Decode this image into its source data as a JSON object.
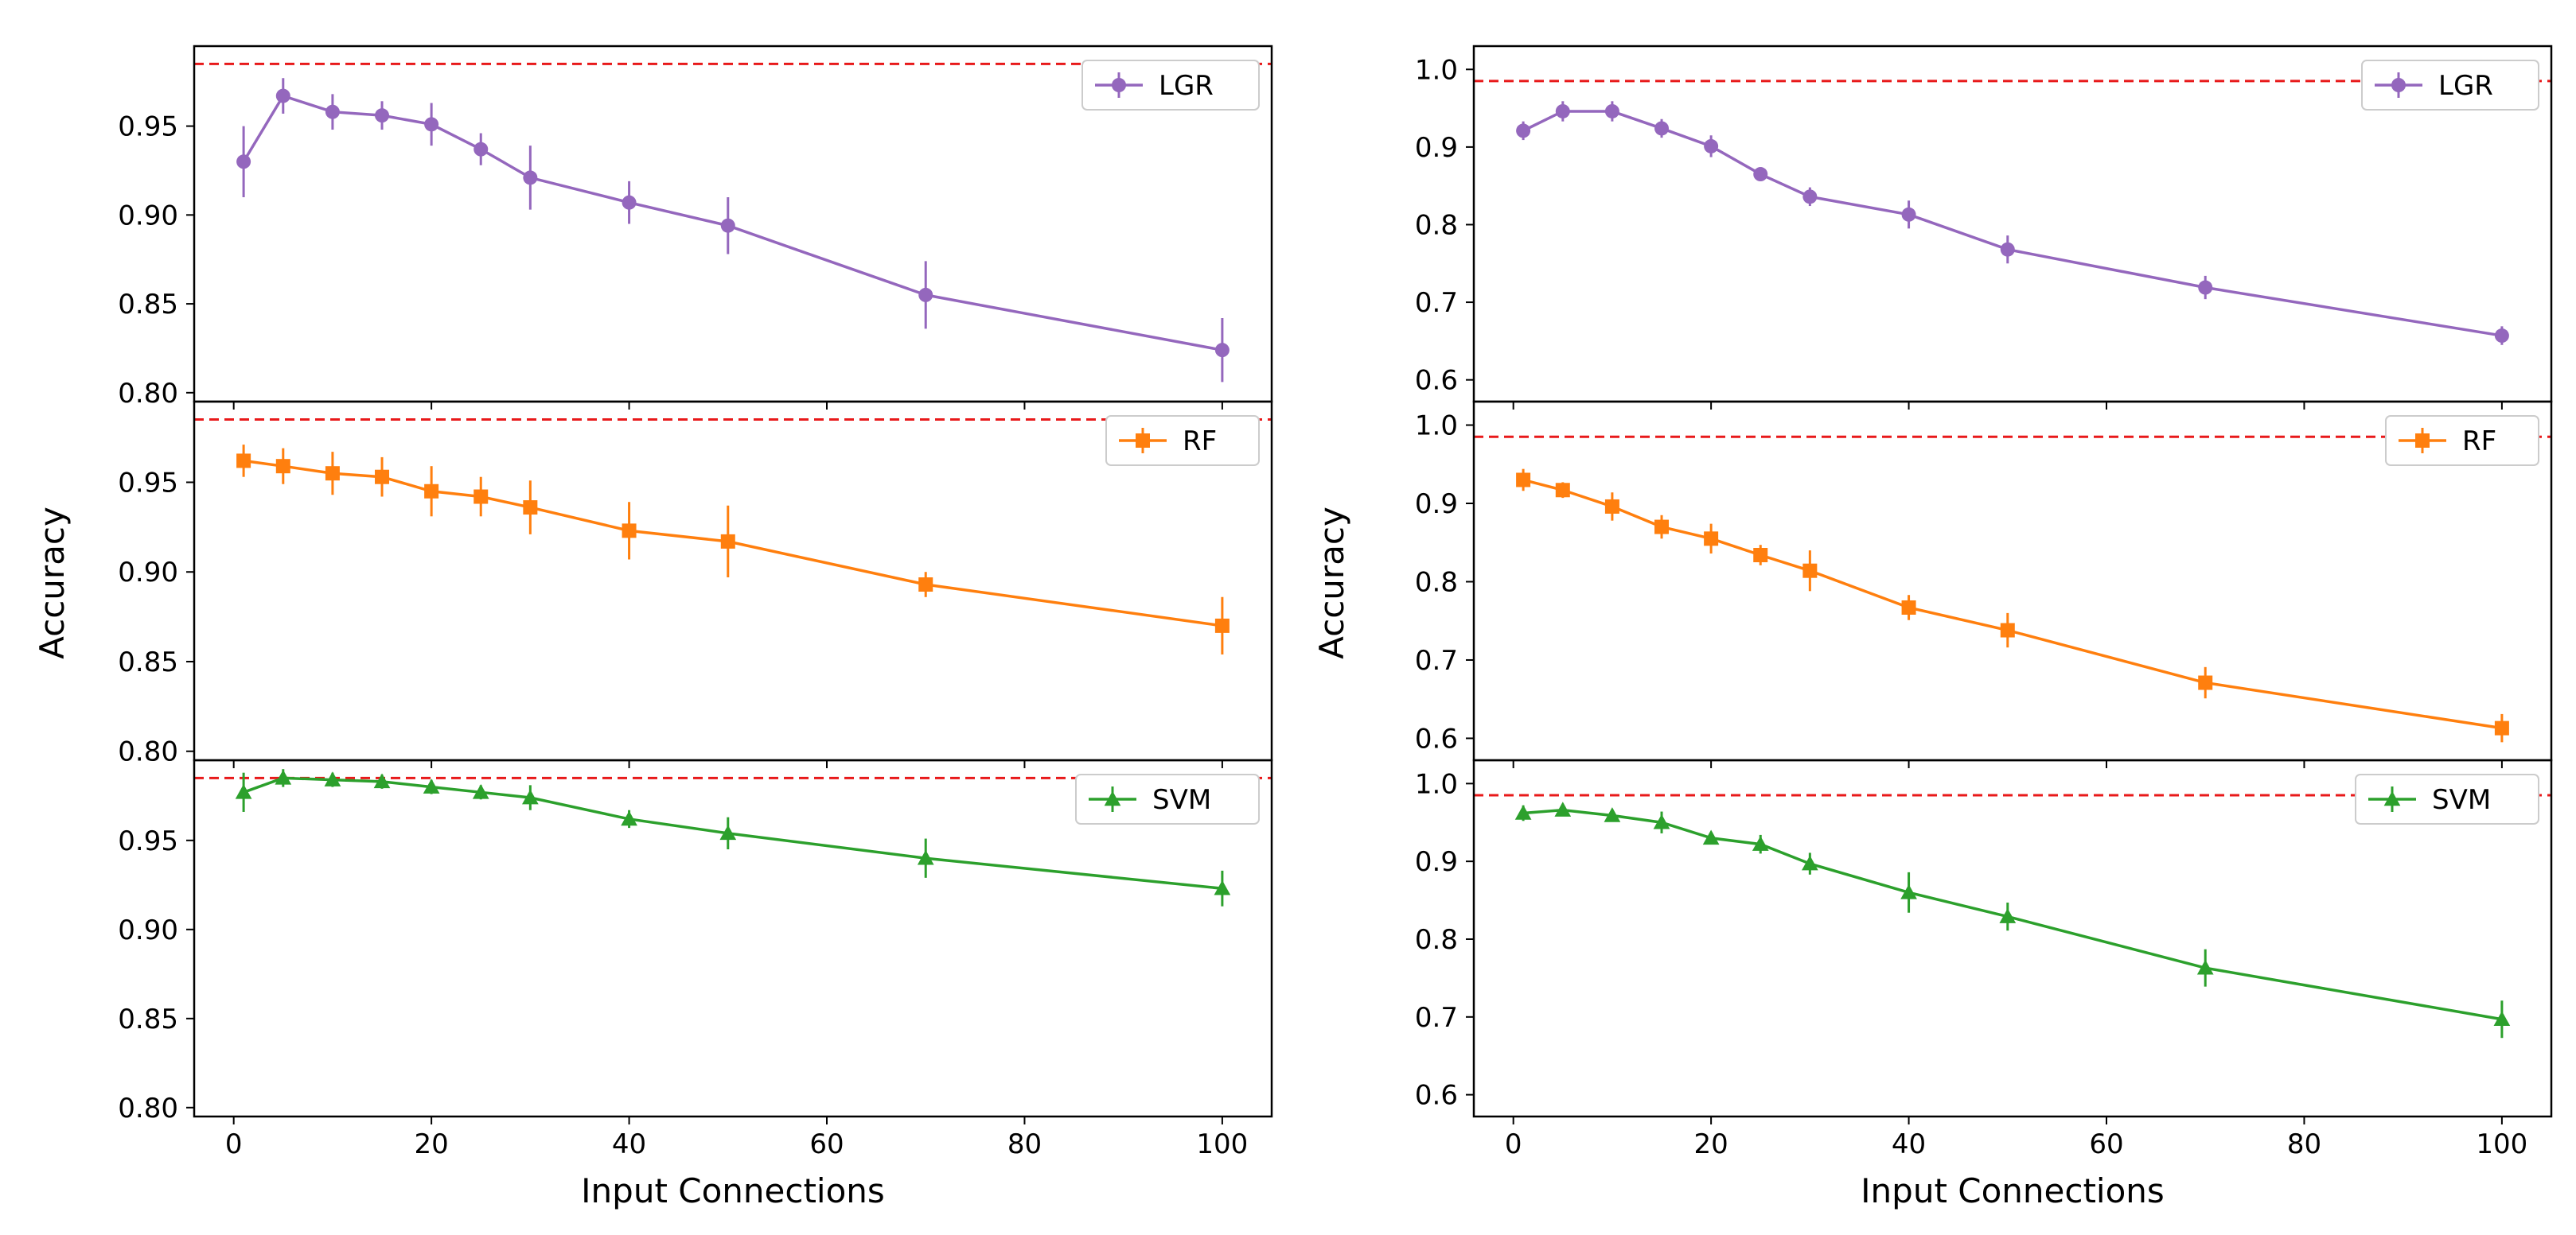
{
  "figure": {
    "left_ylabel": "Accuracy",
    "right_ylabel": "Accuracy",
    "left_xlabel": "Input Connections",
    "right_xlabel": "Input Connections"
  },
  "chart_data": [
    {
      "type": "line",
      "title": "",
      "column": "left",
      "xlabel": "Input Connections",
      "ylabel": "Accuracy",
      "xlim": [
        -4,
        105
      ],
      "xticks": [
        0,
        20,
        40,
        60,
        80,
        100
      ],
      "xtick_labels": [
        "0",
        "20",
        "40",
        "60",
        "80",
        "100"
      ],
      "baseline": 0.985,
      "baseline_color": "#e8191a",
      "panels": [
        {
          "name": "lgr",
          "legend": "LGR",
          "legend_placement": "top-right",
          "color": "#9467bd",
          "marker": "circle",
          "ylim": [
            0.795,
            0.995
          ],
          "yticks": [
            0.8,
            0.85,
            0.9,
            0.95
          ],
          "ytick_labels": [
            "0.80",
            "0.85",
            "0.90",
            "0.95"
          ],
          "x": [
            1,
            5,
            10,
            15,
            20,
            25,
            30,
            40,
            50,
            70,
            100
          ],
          "y": [
            0.93,
            0.967,
            0.958,
            0.956,
            0.951,
            0.937,
            0.921,
            0.907,
            0.894,
            0.855,
            0.824
          ],
          "err": [
            0.02,
            0.01,
            0.01,
            0.008,
            0.012,
            0.009,
            0.018,
            0.012,
            0.016,
            0.019,
            0.018
          ]
        },
        {
          "name": "rf",
          "legend": "RF",
          "legend_placement": "top-right",
          "color": "#ff7f0e",
          "marker": "square",
          "ylim": [
            0.795,
            0.995
          ],
          "yticks": [
            0.8,
            0.85,
            0.9,
            0.95
          ],
          "ytick_labels": [
            "0.80",
            "0.85",
            "0.90",
            "0.95"
          ],
          "x": [
            1,
            5,
            10,
            15,
            20,
            25,
            30,
            40,
            50,
            70,
            100
          ],
          "y": [
            0.962,
            0.959,
            0.955,
            0.953,
            0.945,
            0.942,
            0.936,
            0.923,
            0.917,
            0.893,
            0.87
          ],
          "err": [
            0.009,
            0.01,
            0.012,
            0.011,
            0.014,
            0.011,
            0.015,
            0.016,
            0.02,
            0.007,
            0.016
          ]
        },
        {
          "name": "svm",
          "legend": "SVM",
          "legend_placement": "top-right",
          "color": "#2ca02c",
          "marker": "triangle",
          "ylim": [
            0.795,
            0.995
          ],
          "yticks": [
            0.8,
            0.85,
            0.9,
            0.95
          ],
          "ytick_labels": [
            "0.80",
            "0.85",
            "0.90",
            "0.95"
          ],
          "x": [
            1,
            5,
            10,
            15,
            20,
            25,
            30,
            40,
            50,
            70,
            100
          ],
          "y": [
            0.977,
            0.985,
            0.984,
            0.983,
            0.98,
            0.977,
            0.974,
            0.962,
            0.954,
            0.94,
            0.923
          ],
          "err": [
            0.011,
            0.005,
            0.004,
            0.004,
            0.004,
            0.004,
            0.007,
            0.005,
            0.009,
            0.011,
            0.01
          ]
        }
      ]
    },
    {
      "type": "line",
      "title": "",
      "column": "right",
      "xlabel": "Input Connections",
      "ylabel": "Accuracy",
      "xlim": [
        -4,
        105
      ],
      "xticks": [
        0,
        20,
        40,
        60,
        80,
        100
      ],
      "xtick_labels": [
        "0",
        "20",
        "40",
        "60",
        "80",
        "100"
      ],
      "baseline": 0.985,
      "baseline_color": "#e8191a",
      "panels": [
        {
          "name": "lgr",
          "legend": "LGR",
          "legend_placement": "top-right",
          "color": "#9467bd",
          "marker": "circle",
          "ylim": [
            0.572,
            1.03
          ],
          "yticks": [
            0.6,
            0.7,
            0.8,
            0.9,
            1.0
          ],
          "ytick_labels": [
            "0.6",
            "0.7",
            "0.8",
            "0.9",
            "1.0"
          ],
          "x": [
            1,
            5,
            10,
            15,
            20,
            25,
            30,
            40,
            50,
            70,
            100
          ],
          "y": [
            0.921,
            0.946,
            0.946,
            0.924,
            0.901,
            0.865,
            0.836,
            0.813,
            0.768,
            0.719,
            0.657
          ],
          "err": [
            0.012,
            0.013,
            0.013,
            0.012,
            0.014,
            0.008,
            0.012,
            0.018,
            0.018,
            0.015,
            0.012
          ]
        },
        {
          "name": "rf",
          "legend": "RF",
          "legend_placement": "top-right",
          "color": "#ff7f0e",
          "marker": "square",
          "ylim": [
            0.572,
            1.03
          ],
          "yticks": [
            0.6,
            0.7,
            0.8,
            0.9,
            1.0
          ],
          "ytick_labels": [
            "0.6",
            "0.7",
            "0.8",
            "0.9",
            "1.0"
          ],
          "x": [
            1,
            5,
            10,
            15,
            20,
            25,
            30,
            40,
            50,
            70,
            100
          ],
          "y": [
            0.93,
            0.917,
            0.896,
            0.87,
            0.855,
            0.834,
            0.814,
            0.767,
            0.738,
            0.671,
            0.613
          ],
          "err": [
            0.014,
            0.01,
            0.018,
            0.015,
            0.019,
            0.013,
            0.026,
            0.016,
            0.022,
            0.02,
            0.018
          ]
        },
        {
          "name": "svm",
          "legend": "SVM",
          "legend_placement": "top-right",
          "color": "#2ca02c",
          "marker": "triangle",
          "ylim": [
            0.572,
            1.03
          ],
          "yticks": [
            0.6,
            0.7,
            0.8,
            0.9,
            1.0
          ],
          "ytick_labels": [
            "0.6",
            "0.7",
            "0.8",
            "0.9",
            "1.0"
          ],
          "x": [
            1,
            5,
            10,
            15,
            20,
            25,
            30,
            40,
            50,
            70,
            100
          ],
          "y": [
            0.962,
            0.966,
            0.959,
            0.95,
            0.93,
            0.922,
            0.897,
            0.86,
            0.829,
            0.763,
            0.697
          ],
          "err": [
            0.01,
            0.008,
            0.008,
            0.014,
            0.008,
            0.012,
            0.014,
            0.026,
            0.018,
            0.024,
            0.024
          ]
        }
      ]
    }
  ]
}
